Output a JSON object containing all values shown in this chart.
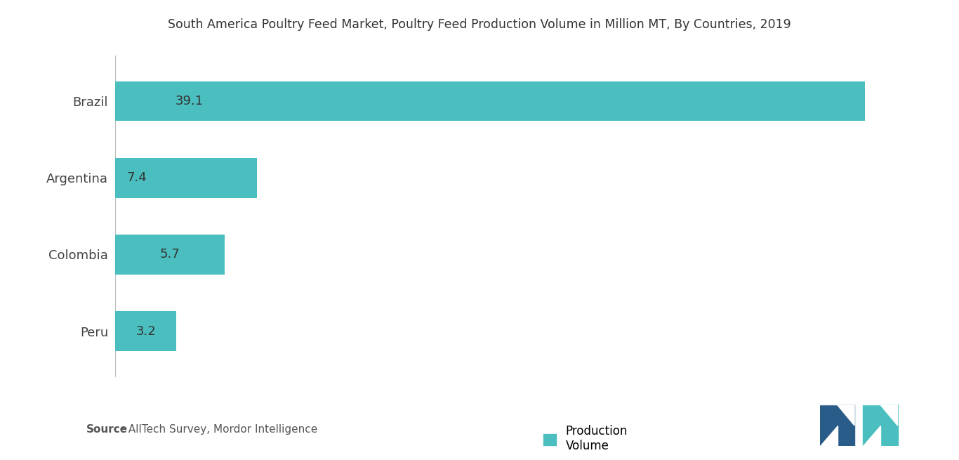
{
  "title": "South America Poultry Feed Market, Poultry Feed Production Volume in Million MT, By Countries, 2019",
  "categories": [
    "Peru",
    "Colombia",
    "Argentina",
    "Brazil"
  ],
  "values": [
    3.2,
    5.7,
    7.4,
    39.1
  ],
  "bar_color": "#4BBFBF",
  "bar_labels": [
    "3.2",
    "5.7",
    "7.4",
    "39.1"
  ],
  "legend_label": "Production\nVolume",
  "source_bold": "Source",
  "source_rest": " : AllTech Survey, Mordor Intelligence",
  "xlim": [
    0,
    42
  ],
  "background_color": "#ffffff",
  "title_fontsize": 12.5,
  "label_fontsize": 13,
  "bar_label_fontsize": 13,
  "source_fontsize": 11,
  "legend_fontsize": 12,
  "bar_height": 0.52,
  "logo_dark": "#2A5C8A",
  "logo_light": "#4BBFBF"
}
